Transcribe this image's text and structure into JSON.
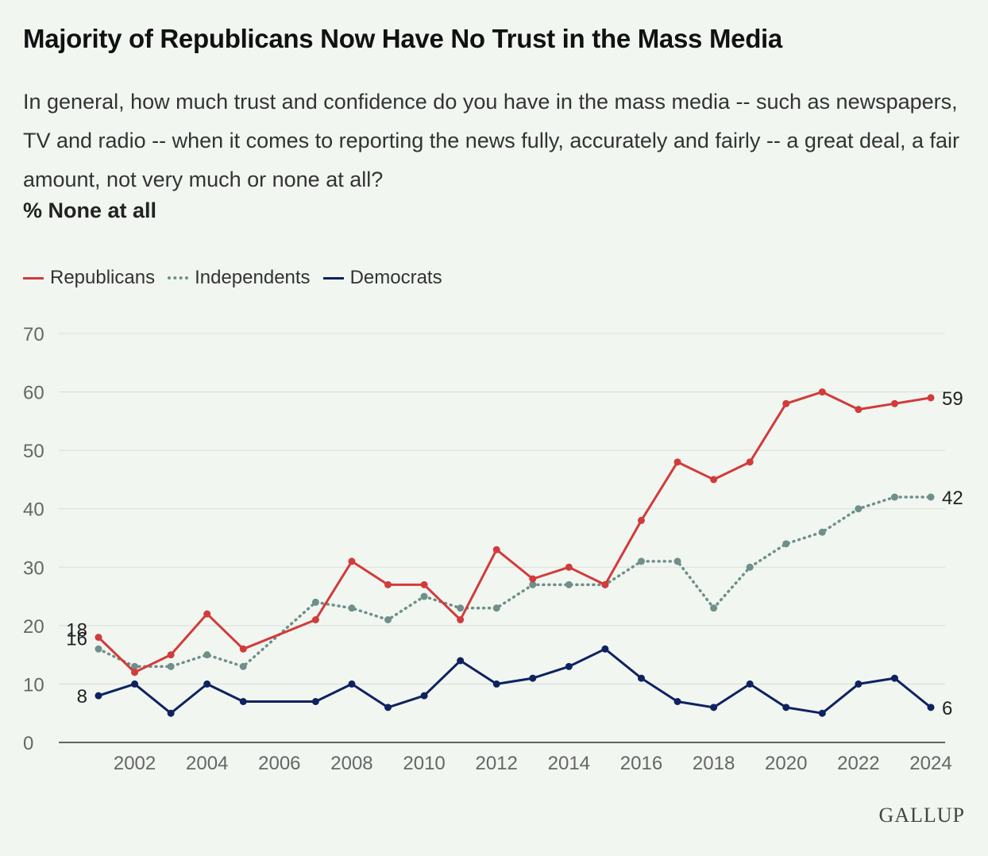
{
  "header": {
    "title": "Majority of Republicans Now Have No Trust in the Mass Media",
    "subtitle": "In general, how much trust and confidence do you have in the mass media -- such as newspapers, TV and radio -- when it comes to reporting the news fully, accurately and fairly -- a great deal, a fair amount, not very much or none at all?",
    "measure": "% None at all"
  },
  "logo": "GALLUP",
  "colors": {
    "republicans": "#d23b3b",
    "independents": "#6f8f8a",
    "democrats": "#0f2260",
    "grid": "#d7ddd7",
    "tick": "#666666"
  },
  "chart_data": {
    "type": "line",
    "x": [
      2001,
      2002,
      2003,
      2004,
      2005,
      2006,
      2007,
      2008,
      2009,
      2010,
      2011,
      2012,
      2013,
      2014,
      2015,
      2016,
      2017,
      2018,
      2019,
      2020,
      2021,
      2022,
      2023,
      2024
    ],
    "x_ticks": [
      2002,
      2004,
      2006,
      2008,
      2010,
      2012,
      2014,
      2016,
      2018,
      2020,
      2022,
      2024
    ],
    "y_ticks": [
      0,
      10,
      20,
      30,
      40,
      50,
      60,
      70
    ],
    "ylim": [
      0,
      70
    ],
    "grid": true,
    "legend_position": "top-left",
    "series": [
      {
        "name": "Republicans",
        "style": "solid",
        "values": [
          18,
          12,
          15,
          22,
          16,
          null,
          21,
          31,
          27,
          27,
          21,
          33,
          28,
          30,
          27,
          38,
          48,
          45,
          48,
          58,
          60,
          57,
          58,
          59
        ],
        "start_label": "18",
        "end_label": "59"
      },
      {
        "name": "Independents",
        "style": "dotted",
        "values": [
          16,
          13,
          13,
          15,
          13,
          null,
          24,
          23,
          21,
          25,
          23,
          23,
          27,
          27,
          27,
          31,
          31,
          23,
          30,
          34,
          36,
          40,
          42,
          42
        ],
        "start_label": "16",
        "end_label": "42"
      },
      {
        "name": "Democrats",
        "style": "solid",
        "values": [
          8,
          10,
          5,
          10,
          7,
          null,
          7,
          10,
          6,
          8,
          14,
          10,
          11,
          13,
          16,
          11,
          7,
          6,
          10,
          6,
          5,
          10,
          11,
          6
        ],
        "start_label": "8",
        "end_label": "6"
      }
    ]
  }
}
